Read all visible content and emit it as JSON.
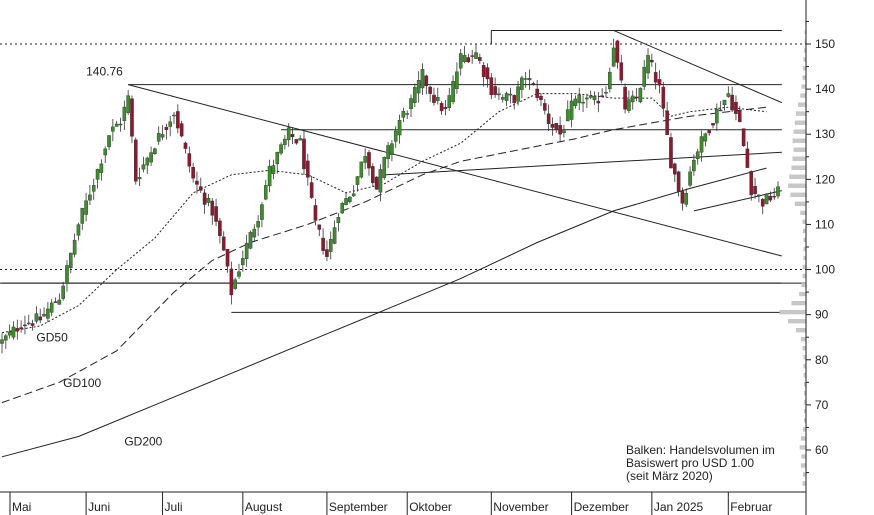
{
  "chart_data": {
    "type": "candlestick",
    "title": "",
    "xlabel": "",
    "ylabel": "",
    "ylim": [
      50,
      156
    ],
    "y_ticks": [
      60,
      70,
      80,
      90,
      100,
      110,
      120,
      130,
      140,
      150
    ],
    "x_labels": [
      "Mai",
      "Juni",
      "Juli",
      "August",
      "September",
      "Oktober",
      "November",
      "Dezember",
      "Jan 2025",
      "Februar"
    ],
    "grid": false,
    "candles": {
      "n": 204,
      "colors": {
        "up": "#3d8c2e",
        "down": "#8b1a2e"
      },
      "anchors": [
        {
          "i": 0,
          "v": 84
        },
        {
          "i": 5,
          "v": 88
        },
        {
          "i": 10,
          "v": 89
        },
        {
          "i": 15,
          "v": 94
        },
        {
          "i": 17,
          "v": 100
        },
        {
          "i": 20,
          "v": 110
        },
        {
          "i": 25,
          "v": 122
        },
        {
          "i": 28,
          "v": 130
        },
        {
          "i": 31,
          "v": 133
        },
        {
          "i": 33,
          "v": 138
        },
        {
          "i": 35,
          "v": 120
        },
        {
          "i": 40,
          "v": 128
        },
        {
          "i": 45,
          "v": 135
        },
        {
          "i": 50,
          "v": 120
        },
        {
          "i": 55,
          "v": 113
        },
        {
          "i": 58,
          "v": 104
        },
        {
          "i": 60,
          "v": 95
        },
        {
          "i": 63,
          "v": 103
        },
        {
          "i": 67,
          "v": 112
        },
        {
          "i": 70,
          "v": 122
        },
        {
          "i": 75,
          "v": 130
        },
        {
          "i": 78,
          "v": 128
        },
        {
          "i": 82,
          "v": 110
        },
        {
          "i": 85,
          "v": 103
        },
        {
          "i": 88,
          "v": 113
        },
        {
          "i": 92,
          "v": 118
        },
        {
          "i": 95,
          "v": 126
        },
        {
          "i": 98,
          "v": 118
        },
        {
          "i": 100,
          "v": 124
        },
        {
          "i": 104,
          "v": 133
        },
        {
          "i": 107,
          "v": 137
        },
        {
          "i": 110,
          "v": 143
        },
        {
          "i": 113,
          "v": 138
        },
        {
          "i": 116,
          "v": 135
        },
        {
          "i": 120,
          "v": 147
        },
        {
          "i": 124,
          "v": 148
        },
        {
          "i": 128,
          "v": 140
        },
        {
          "i": 131,
          "v": 138
        },
        {
          "i": 134,
          "v": 138
        },
        {
          "i": 137,
          "v": 143
        },
        {
          "i": 140,
          "v": 139
        },
        {
          "i": 143,
          "v": 133
        },
        {
          "i": 146,
          "v": 130
        },
        {
          "i": 149,
          "v": 136
        },
        {
          "i": 152,
          "v": 138
        },
        {
          "i": 155,
          "v": 137
        },
        {
          "i": 158,
          "v": 140
        },
        {
          "i": 160,
          "v": 150
        },
        {
          "i": 163,
          "v": 136
        },
        {
          "i": 166,
          "v": 138
        },
        {
          "i": 169,
          "v": 147
        },
        {
          "i": 172,
          "v": 140
        },
        {
          "i": 175,
          "v": 124
        },
        {
          "i": 178,
          "v": 115
        },
        {
          "i": 181,
          "v": 125
        },
        {
          "i": 184,
          "v": 130
        },
        {
          "i": 187,
          "v": 135
        },
        {
          "i": 190,
          "v": 139
        },
        {
          "i": 193,
          "v": 132
        },
        {
          "i": 196,
          "v": 118
        },
        {
          "i": 199,
          "v": 115
        },
        {
          "i": 203,
          "v": 117
        }
      ]
    },
    "moving_averages": [
      {
        "name": "GD50",
        "style": "dotted",
        "points": [
          [
            0,
            86
          ],
          [
            10,
            87.5
          ],
          [
            20,
            92
          ],
          [
            30,
            100
          ],
          [
            40,
            107
          ],
          [
            50,
            117
          ],
          [
            60,
            121
          ],
          [
            70,
            122
          ],
          [
            80,
            121
          ],
          [
            90,
            117
          ],
          [
            100,
            119
          ],
          [
            110,
            124
          ],
          [
            120,
            128
          ],
          [
            130,
            135
          ],
          [
            140,
            139
          ],
          [
            150,
            139
          ],
          [
            160,
            138
          ],
          [
            170,
            138
          ],
          [
            175,
            134
          ],
          [
            180,
            135
          ],
          [
            190,
            136
          ],
          [
            200,
            135
          ]
        ]
      },
      {
        "name": "GD100",
        "style": "dashed",
        "points": [
          [
            0,
            70.5
          ],
          [
            15,
            75
          ],
          [
            30,
            82
          ],
          [
            45,
            95
          ],
          [
            55,
            102
          ],
          [
            65,
            106
          ],
          [
            80,
            110
          ],
          [
            95,
            115
          ],
          [
            110,
            121
          ],
          [
            120,
            124
          ],
          [
            135,
            126.5
          ],
          [
            150,
            129
          ],
          [
            160,
            131
          ],
          [
            170,
            132.5
          ],
          [
            180,
            134
          ],
          [
            190,
            135
          ],
          [
            200,
            136
          ]
        ]
      },
      {
        "name": "GD200",
        "style": "solid",
        "points": [
          [
            0,
            58.5
          ],
          [
            20,
            63
          ],
          [
            40,
            70
          ],
          [
            60,
            77
          ],
          [
            80,
            84
          ],
          [
            100,
            91
          ],
          [
            120,
            98
          ],
          [
            140,
            106
          ],
          [
            160,
            113
          ],
          [
            180,
            118
          ],
          [
            200,
            122.5
          ]
        ]
      }
    ],
    "levels": [
      {
        "value": 150,
        "style": "dotted"
      },
      {
        "value": 100,
        "style": "dotted"
      },
      {
        "value": 97,
        "style": "solid"
      }
    ],
    "lines": [
      {
        "from": [
          0,
          97
        ],
        "to": [
          204,
          97
        ]
      },
      {
        "from": [
          33,
          141
        ],
        "to": [
          204,
          141
        ]
      },
      {
        "from": [
          73,
          131
        ],
        "to": [
          204,
          131
        ]
      },
      {
        "from": [
          60,
          90.5
        ],
        "to": [
          204,
          90.5
        ]
      },
      {
        "from": [
          128,
          153
        ],
        "to": [
          204,
          153
        ]
      },
      {
        "from": [
          128,
          150
        ],
        "to": [
          128,
          153
        ]
      },
      {
        "from": [
          33,
          141
        ],
        "to": [
          204,
          103
        ]
      },
      {
        "from": [
          160,
          153
        ],
        "to": [
          204,
          137
        ]
      },
      {
        "from": [
          100,
          121
        ],
        "to": [
          204,
          126
        ]
      },
      {
        "from": [
          181,
          113
        ],
        "to": [
          204,
          117.5
        ]
      }
    ],
    "annotations": [
      {
        "text": "140.76",
        "at": [
          22,
          143
        ]
      },
      {
        "text": "GD50",
        "at": [
          9,
          84
        ]
      },
      {
        "text": "GD100",
        "at": [
          16,
          74
        ]
      },
      {
        "text": "GD200",
        "at": [
          32,
          61
        ]
      }
    ],
    "volume_profile": [
      [
        52,
        6
      ],
      [
        54,
        5
      ],
      [
        56,
        9
      ],
      [
        58,
        8
      ],
      [
        60,
        11
      ],
      [
        62,
        9
      ],
      [
        64,
        5
      ],
      [
        66,
        3
      ],
      [
        68,
        3
      ],
      [
        70,
        3
      ],
      [
        72,
        3
      ],
      [
        74,
        3
      ],
      [
        76,
        4
      ],
      [
        78,
        4
      ],
      [
        80,
        4
      ],
      [
        82,
        6
      ],
      [
        84,
        9
      ],
      [
        86,
        18
      ],
      [
        88,
        32
      ],
      [
        90,
        48
      ],
      [
        92,
        26
      ],
      [
        94,
        12
      ],
      [
        96,
        8
      ],
      [
        98,
        6
      ],
      [
        100,
        6
      ],
      [
        102,
        4
      ],
      [
        104,
        4
      ],
      [
        106,
        4
      ],
      [
        108,
        5
      ],
      [
        110,
        6
      ],
      [
        112,
        10
      ],
      [
        114,
        20
      ],
      [
        116,
        28
      ],
      [
        118,
        32
      ],
      [
        120,
        30
      ],
      [
        122,
        26
      ],
      [
        124,
        24
      ],
      [
        126,
        22
      ],
      [
        128,
        24
      ],
      [
        130,
        22
      ],
      [
        132,
        20
      ],
      [
        134,
        18
      ],
      [
        136,
        14
      ],
      [
        138,
        10
      ],
      [
        140,
        8
      ],
      [
        142,
        6
      ],
      [
        144,
        5
      ],
      [
        146,
        4
      ],
      [
        148,
        3
      ],
      [
        150,
        2
      ],
      [
        152,
        2
      ],
      [
        154,
        1
      ]
    ],
    "volume_note": [
      "Balken: Handelsvolumen im",
      "Basiswert pro USD 1.00",
      "(seit März 2020)"
    ]
  }
}
